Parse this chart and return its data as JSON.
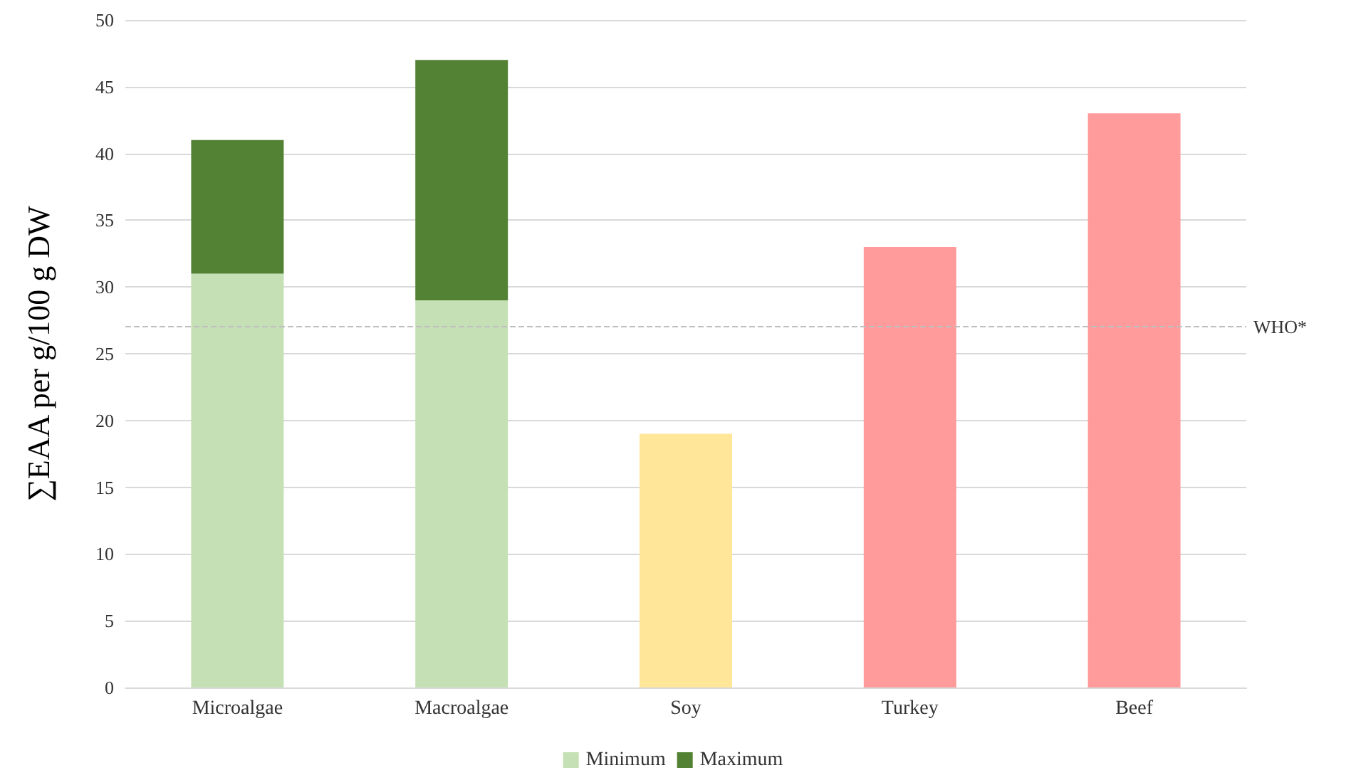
{
  "chart_data": {
    "type": "bar",
    "ylabel": "∑EAA per g/100 g DW",
    "categories": [
      "Microalgae",
      "Macroalgae",
      "Soy",
      "Turkey",
      "Beef"
    ],
    "stacked": true,
    "series": [
      {
        "name": "Minimum",
        "color": "#c5e0b4",
        "colors": [
          "#c5e0b4",
          "#c5e0b4",
          "#ffe699",
          "#ff9b9b",
          "#ff9b9b"
        ],
        "values": [
          31,
          29,
          19,
          33,
          43
        ]
      },
      {
        "name": "Maximum",
        "color": "#548235",
        "values": [
          10,
          18,
          null,
          null,
          null
        ]
      }
    ],
    "ylim": [
      0,
      50
    ],
    "yticks": [
      0,
      5,
      10,
      15,
      20,
      25,
      30,
      35,
      40,
      45,
      50
    ],
    "grid": "y",
    "legend": "bottom",
    "ref_lines": [
      {
        "axis": "y",
        "value": 27,
        "label": "WHO*",
        "color": "#bfbfbf",
        "line_style": "dashed"
      }
    ]
  }
}
